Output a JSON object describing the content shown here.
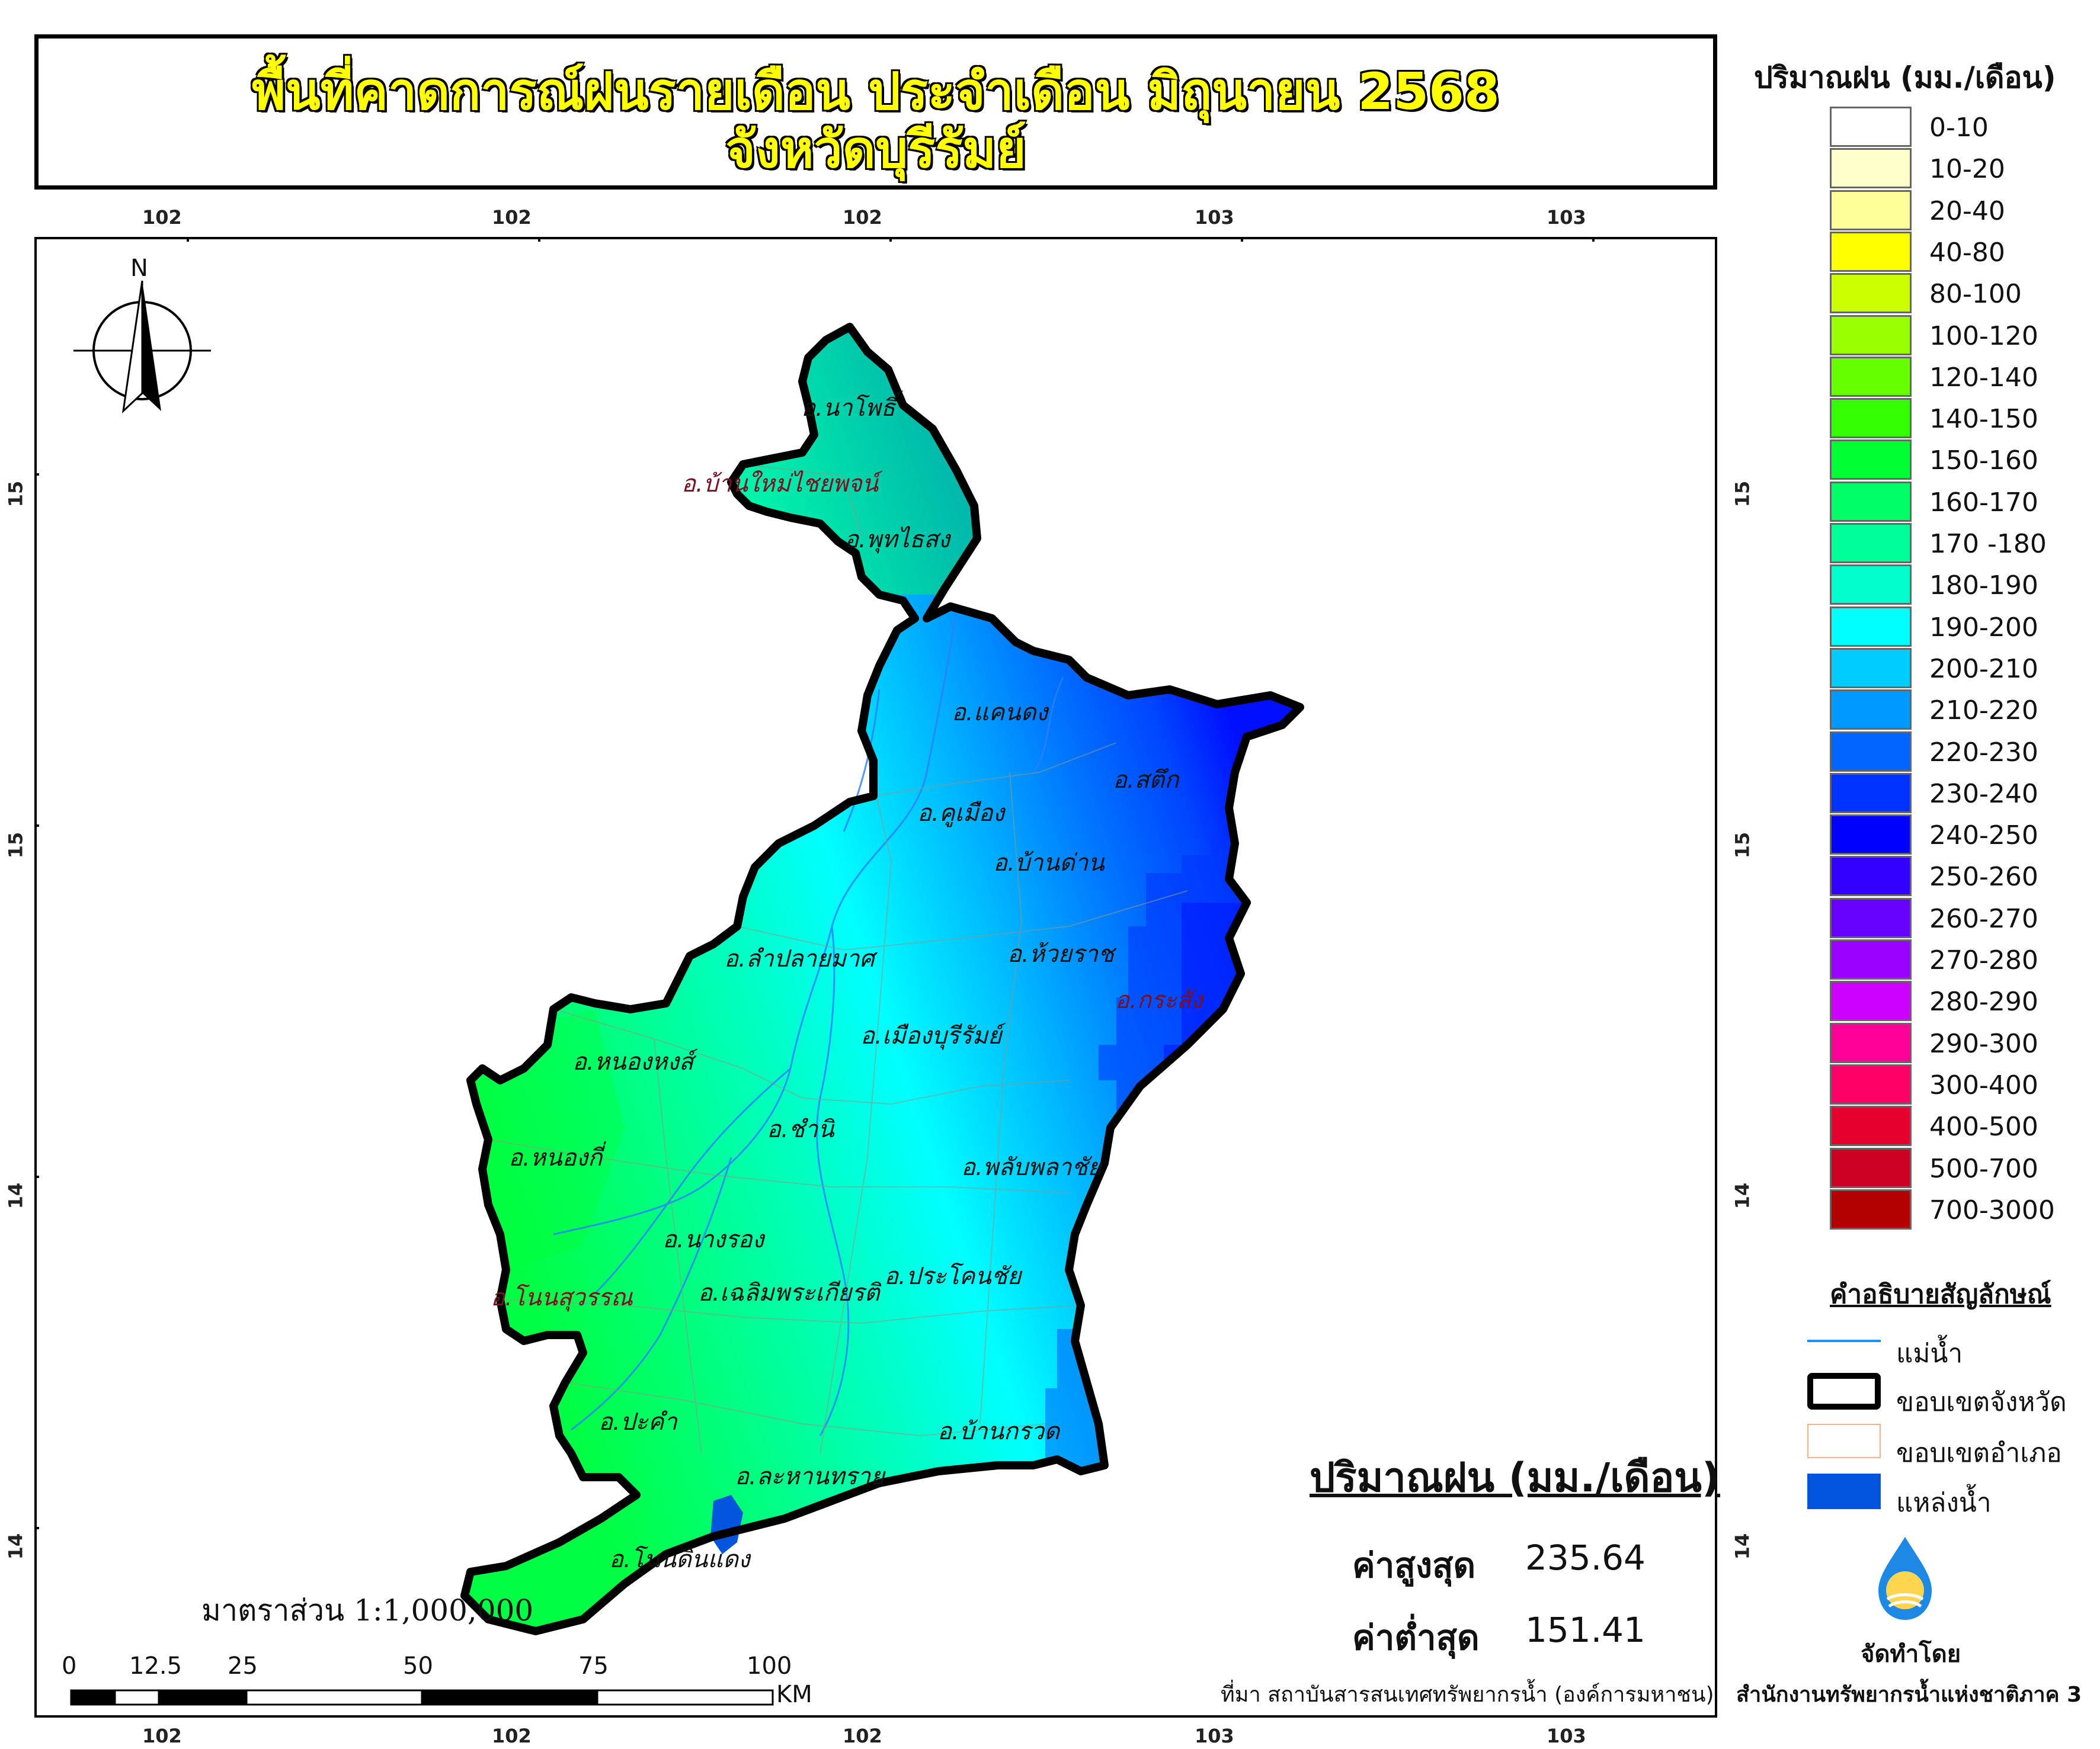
{
  "title": {
    "line1": "พื้นที่คาดการณ์ฝนรายเดือน ประจำเดือน มิถุนายน 2568",
    "line2": "จังหวัดบุรีรัมย์"
  },
  "graticule": {
    "top_labels": [
      "102",
      "102",
      "102",
      "103",
      "103"
    ],
    "bottom_labels": [
      "102",
      "102",
      "102",
      "103",
      "103"
    ],
    "left_labels": [
      "15",
      "15",
      "14",
      "14"
    ],
    "right_labels": [
      "15",
      "15",
      "14",
      "14"
    ]
  },
  "north_arrow": {
    "label": "N"
  },
  "legend": {
    "title": "ปริมาณฝน (มม./เดือน)",
    "classes": [
      {
        "label": "0-10",
        "color": "#ffffff"
      },
      {
        "label": "10-20",
        "color": "#ffffcc"
      },
      {
        "label": "20-40",
        "color": "#ffff99"
      },
      {
        "label": "40-80",
        "color": "#ffff00"
      },
      {
        "label": "80-100",
        "color": "#ccff00"
      },
      {
        "label": "100-120",
        "color": "#99ff00"
      },
      {
        "label": "120-140",
        "color": "#66ff00"
      },
      {
        "label": "140-150",
        "color": "#33ff00"
      },
      {
        "label": "150-160",
        "color": "#00ff33"
      },
      {
        "label": "160-170",
        "color": "#00ff66"
      },
      {
        "label": "170 -180",
        "color": "#00ff99"
      },
      {
        "label": "180-190",
        "color": "#00ffcc"
      },
      {
        "label": "190-200",
        "color": "#00ffff"
      },
      {
        "label": "200-210",
        "color": "#00ccff"
      },
      {
        "label": "210-220",
        "color": "#0099ff"
      },
      {
        "label": "220-230",
        "color": "#0066ff"
      },
      {
        "label": "230-240",
        "color": "#0033ff"
      },
      {
        "label": "240-250",
        "color": "#0000ff"
      },
      {
        "label": "250-260",
        "color": "#3300ff"
      },
      {
        "label": "260-270",
        "color": "#6600ff"
      },
      {
        "label": "270-280",
        "color": "#9900ff"
      },
      {
        "label": "280-290",
        "color": "#cc00ff"
      },
      {
        "label": "290-300",
        "color": "#ff0099"
      },
      {
        "label": "300-400",
        "color": "#ff0066"
      },
      {
        "label": "400-500",
        "color": "#e6002e"
      },
      {
        "label": "500-700",
        "color": "#cc0022"
      },
      {
        "label": "700-3000",
        "color": "#b30000"
      }
    ]
  },
  "symbols": {
    "title": "คำอธิบายสัญลักษณ์",
    "items": [
      {
        "label": "แม่น้ำ",
        "kind": "river",
        "color": "#1e90ff"
      },
      {
        "label": "ขอบเขตจังหวัด",
        "kind": "province-boundary",
        "color": "#000000"
      },
      {
        "label": "ขอบเขตอำเภอ",
        "kind": "district-boundary",
        "color": "#f4b183"
      },
      {
        "label": "แหล่งน้ำ",
        "kind": "water-body",
        "color": "#0055dd"
      }
    ]
  },
  "districts": [
    "อ.นาโพธิ์",
    "อ.บ้านใหม่ไชยพจน์",
    "อ.พุทไธสง",
    "อ.แคนดง",
    "อ.สตึก",
    "อ.คูเมือง",
    "อ.บ้านด่าน",
    "อ.ลำปลายมาศ",
    "อ.ห้วยราช",
    "อ.กระสัง",
    "อ.หนองหงส์",
    "อ.เมืองบุรีรัมย์",
    "อ.ชำนิ",
    "อ.หนองกี่",
    "อ.พลับพลาชัย",
    "อ.นางรอง",
    "อ.เฉลิมพระเกียรติ",
    "อ.ประโคนชัย",
    "อ.โนนสุวรรณ",
    "อ.ปะคำ",
    "อ.บ้านกรวด",
    "อ.ละหานทราย",
    "อ.โนนดินแดง"
  ],
  "stats": {
    "title": "ปริมาณฝน (มม./เดือน)",
    "max_label": "ค่าสูงสุด",
    "max_value": "235.64",
    "min_label": "ค่าต่ำสุด",
    "min_value": "151.41"
  },
  "scale": {
    "text": "มาตราส่วน 1:1,000,000",
    "bar_labels": [
      "0",
      "12.5",
      "25",
      "50",
      "75",
      "100"
    ],
    "unit": "KM"
  },
  "credits": {
    "source": "ที่มา  สถาบันสารสนเทศทรัพยากรน้ำ (องค์การมหาชน)",
    "made_by": "จัดทำโดย",
    "org": "สำนักงานทรัพยากรน้ำแห่งชาติภาค 3"
  }
}
